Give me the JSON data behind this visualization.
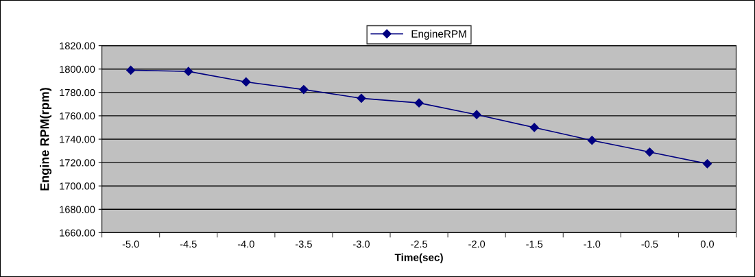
{
  "chart_data": {
    "type": "line",
    "xlabel": "Time(sec)",
    "ylabel": "Engine RPM(rpm)",
    "categories": [
      "-5.0",
      "-4.5",
      "-4.0",
      "-3.5",
      "-3.0",
      "-2.5",
      "-2.0",
      "-1.5",
      "-1.0",
      "-0.5",
      "0.0"
    ],
    "series": [
      {
        "name": "EngineRPM",
        "color": "#000080",
        "values": [
          1799,
          1798,
          1789,
          1782.5,
          1775,
          1771,
          1761,
          1750,
          1739,
          1729,
          1719
        ]
      }
    ],
    "ylim": [
      1660,
      1820
    ],
    "yticks": [
      {
        "value": 1660,
        "label": "1660.00"
      },
      {
        "value": 1680,
        "label": "1680.00"
      },
      {
        "value": 1700,
        "label": "1700.00"
      },
      {
        "value": 1720,
        "label": "1720.00"
      },
      {
        "value": 1740,
        "label": "1740.00"
      },
      {
        "value": 1760,
        "label": "1760.00"
      },
      {
        "value": 1780,
        "label": "1780.00"
      },
      {
        "value": 1800,
        "label": "1800.00"
      },
      {
        "value": 1820,
        "label": "1820.00"
      }
    ],
    "grid": "y",
    "legend": "top",
    "marker": "diamond",
    "line_style": "solid"
  }
}
